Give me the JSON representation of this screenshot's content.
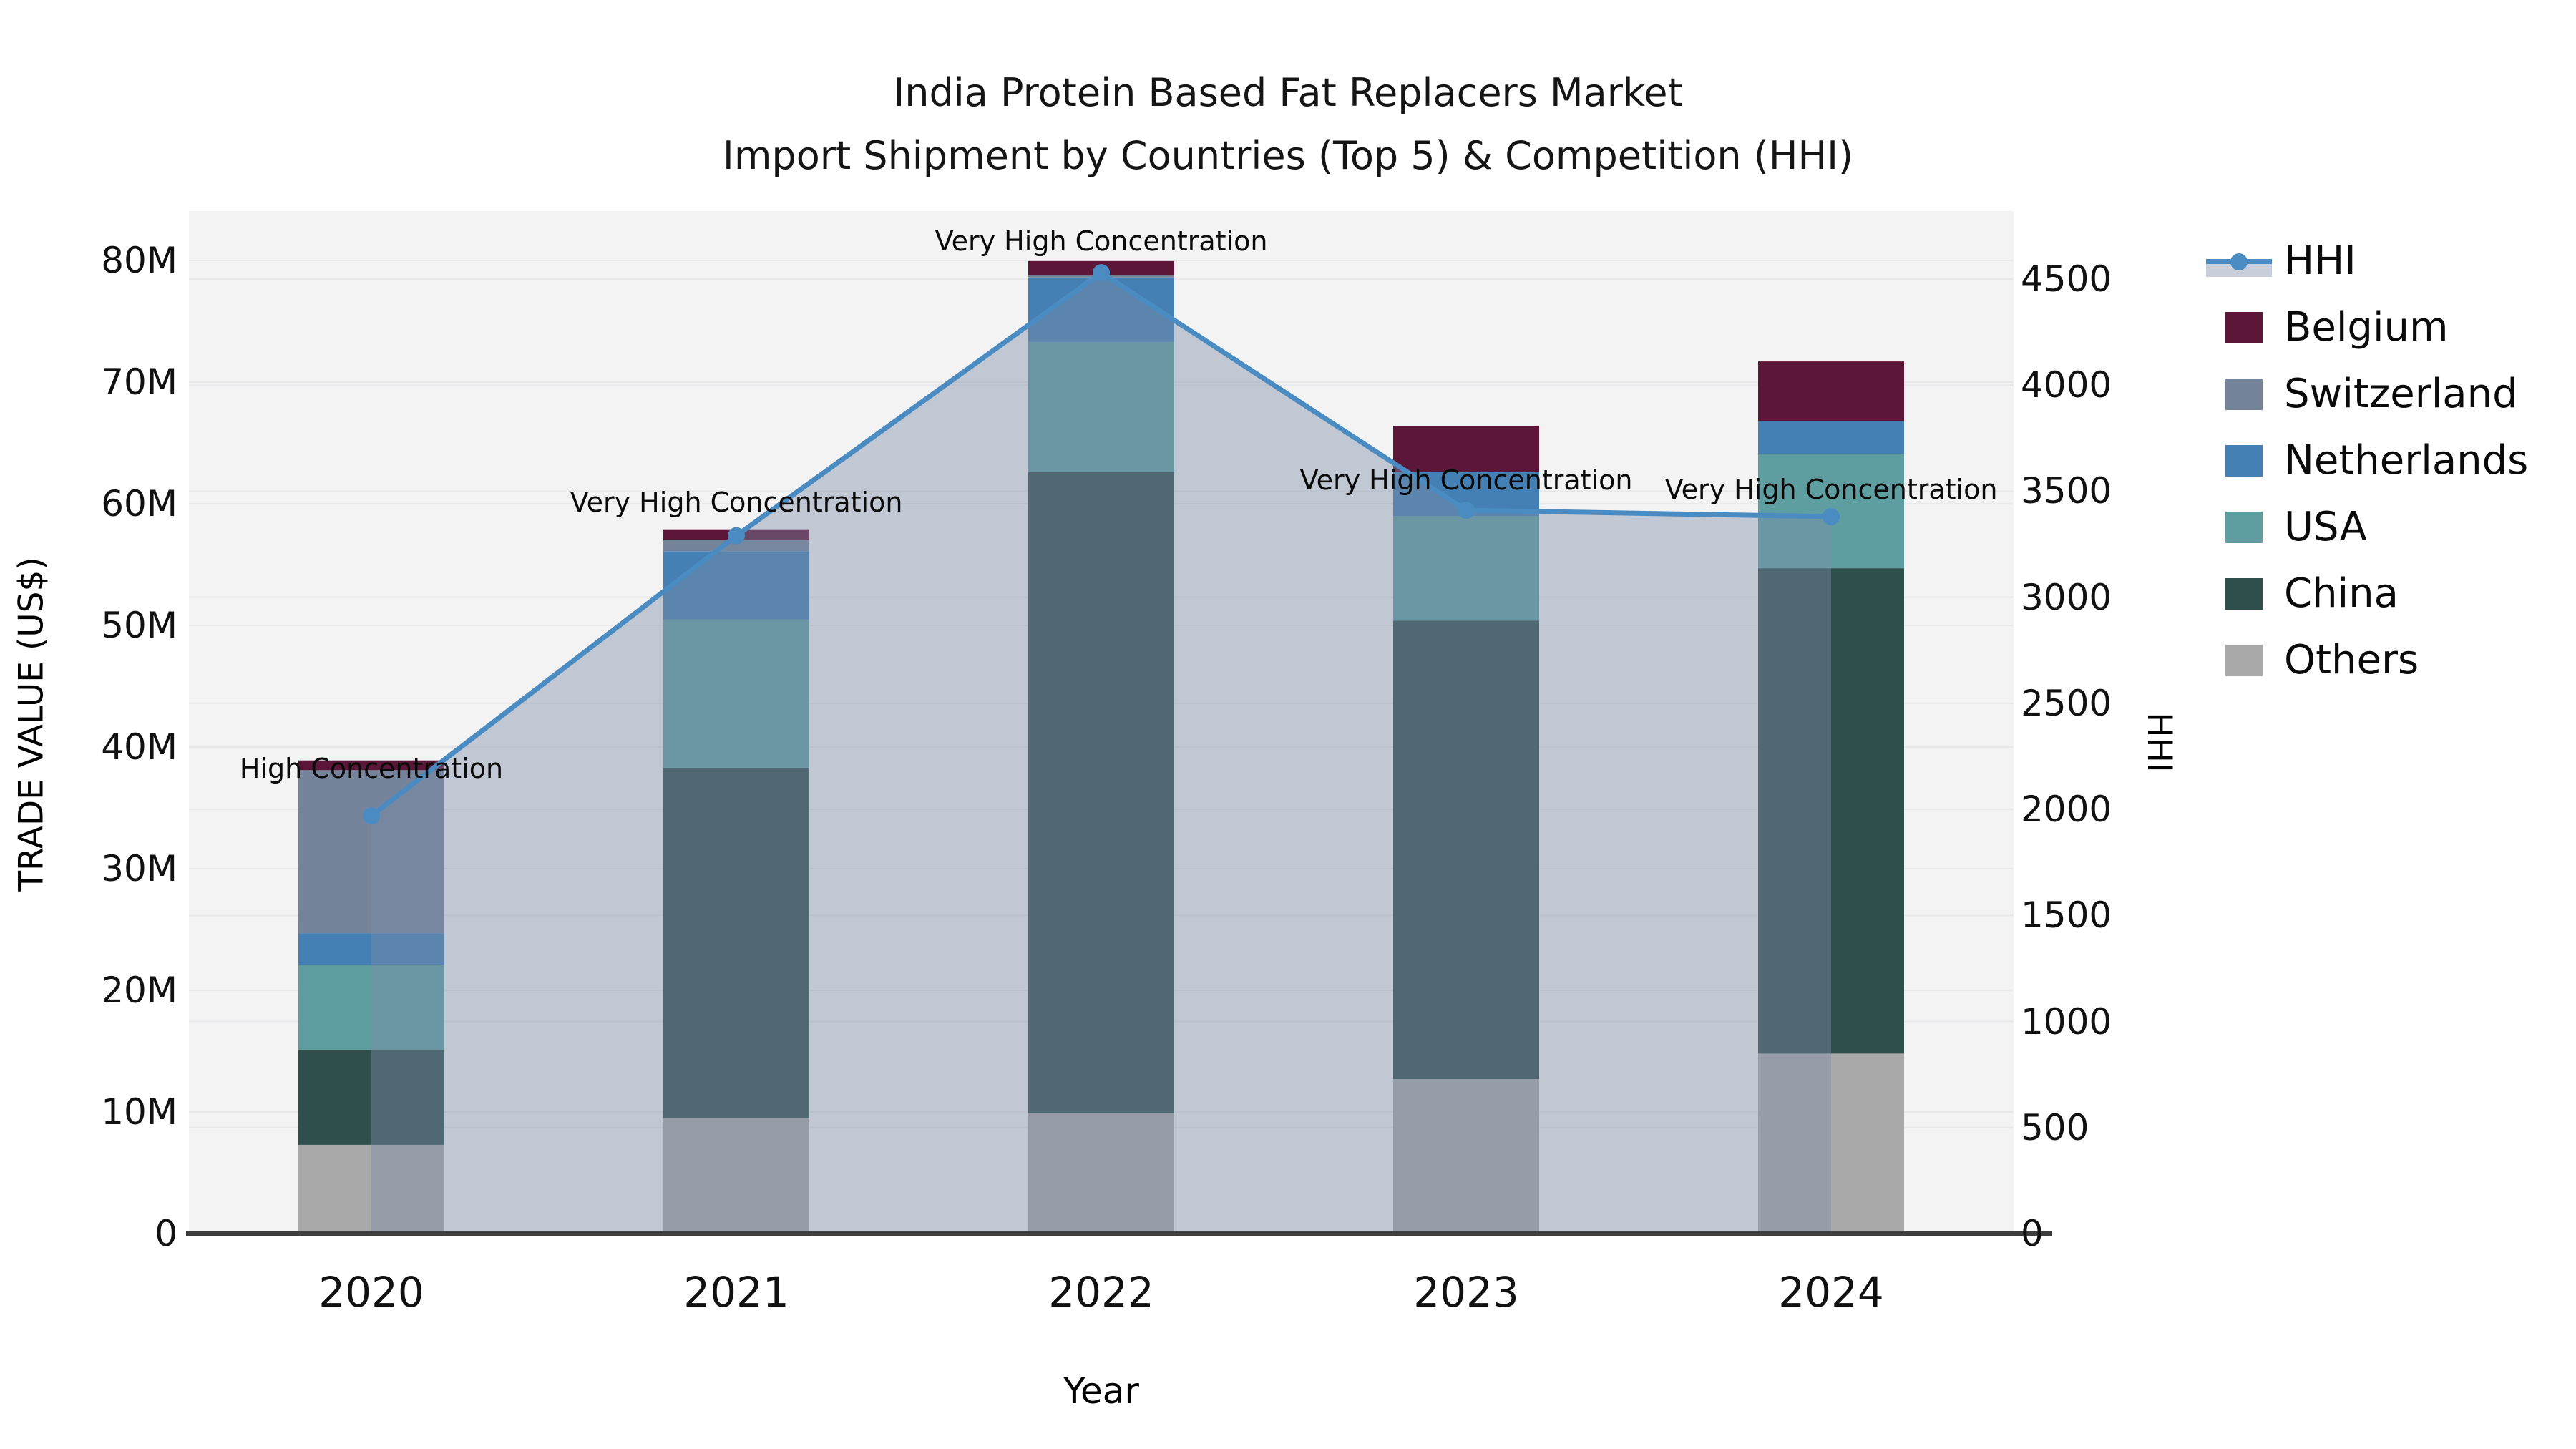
{
  "title": {
    "line1": "India Protein Based Fat Replacers Market",
    "line2": "Import Shipment by Countries (Top 5) & Competition (HHI)"
  },
  "axes": {
    "x": {
      "label": "Year",
      "ticks": [
        "2020",
        "2021",
        "2022",
        "2023",
        "2024"
      ]
    },
    "y_left": {
      "label": "TRADE VALUE (US$)",
      "ticks": [
        "0",
        "10M",
        "20M",
        "30M",
        "40M",
        "50M",
        "60M",
        "70M",
        "80M"
      ]
    },
    "y_right": {
      "label": "HHI",
      "ticks": [
        "0",
        "500",
        "1000",
        "1500",
        "2000",
        "2500",
        "3000",
        "3500",
        "4000",
        "4500"
      ]
    }
  },
  "legend": {
    "items": [
      {
        "label": "HHI",
        "type": "line",
        "color": "#4a8bc2",
        "band_color": "#c8cfda"
      },
      {
        "label": "Belgium",
        "type": "patch",
        "color": "#5c1637"
      },
      {
        "label": "Switzerland",
        "type": "patch",
        "color": "#75849b"
      },
      {
        "label": "Netherlands",
        "type": "patch",
        "color": "#4580b4"
      },
      {
        "label": "USA",
        "type": "patch",
        "color": "#5f9ea0"
      },
      {
        "label": "China",
        "type": "patch",
        "color": "#2f4f4d"
      },
      {
        "label": "Others",
        "type": "patch",
        "color": "#a9a9a9"
      }
    ]
  },
  "colors": {
    "plot_bg": "#f3f3f4",
    "gridline": "#e8e9eb",
    "axis_line": "#3d3d3d",
    "hhi_line": "#4a8bc2",
    "hhi_fill": "rgba(124,140,166,0.42)",
    "text": "#111111"
  },
  "chart_data": {
    "type": "bar-stacked+line",
    "title": "India Protein Based Fat Replacers Market — Import Shipment by Countries (Top 5) & Competition (HHI)",
    "categories": [
      "2020",
      "2021",
      "2022",
      "2023",
      "2024"
    ],
    "bar_unit": "million US$",
    "stack_order_bottom_to_top": [
      "Others",
      "China",
      "USA",
      "Netherlands",
      "Switzerland",
      "Belgium"
    ],
    "series": [
      {
        "name": "Others",
        "color": "#a9a9a9",
        "values": [
          7.3,
          9.5,
          9.9,
          12.7,
          14.8
        ]
      },
      {
        "name": "China",
        "color": "#2f4f4d",
        "values": [
          7.8,
          28.8,
          52.7,
          37.7,
          39.9
        ]
      },
      {
        "name": "USA",
        "color": "#5f9ea0",
        "values": [
          7.0,
          12.2,
          10.7,
          8.6,
          9.4
        ]
      },
      {
        "name": "Netherlands",
        "color": "#4580b4",
        "values": [
          2.6,
          5.6,
          5.3,
          3.6,
          2.7
        ]
      },
      {
        "name": "Switzerland",
        "color": "#75849b",
        "values": [
          13.4,
          0.9,
          0.15,
          0.0,
          0.0
        ]
      },
      {
        "name": "Belgium",
        "color": "#5c1637",
        "values": [
          0.8,
          0.9,
          1.2,
          3.8,
          4.9
        ]
      }
    ],
    "bar_totals": [
      38.9,
      57.9,
      79.95,
      66.4,
      71.7
    ],
    "line_series": {
      "name": "HHI",
      "axis": "right",
      "values": [
        1970,
        3290,
        4530,
        3410,
        3380
      ]
    },
    "annotations": [
      {
        "category": "2020",
        "text": "High Concentration"
      },
      {
        "category": "2021",
        "text": "Very High Concentration"
      },
      {
        "category": "2022",
        "text": "Very High Concentration"
      },
      {
        "category": "2023",
        "text": "Very High Concentration"
      },
      {
        "category": "2024",
        "text": "Very High Concentration"
      }
    ],
    "xlabel": "Year",
    "ylabel_left": "TRADE VALUE (US$)",
    "ylabel_right": "HHI",
    "ylim_left": [
      0,
      84000000
    ],
    "ylim_right": [
      0,
      4822
    ],
    "yticks_left_values": [
      0,
      10000000,
      20000000,
      30000000,
      40000000,
      50000000,
      60000000,
      70000000,
      80000000
    ],
    "yticks_right_values": [
      0,
      500,
      1000,
      1500,
      2000,
      2500,
      3000,
      3500,
      4000,
      4500
    ],
    "grid": true,
    "legend_position": "right"
  }
}
